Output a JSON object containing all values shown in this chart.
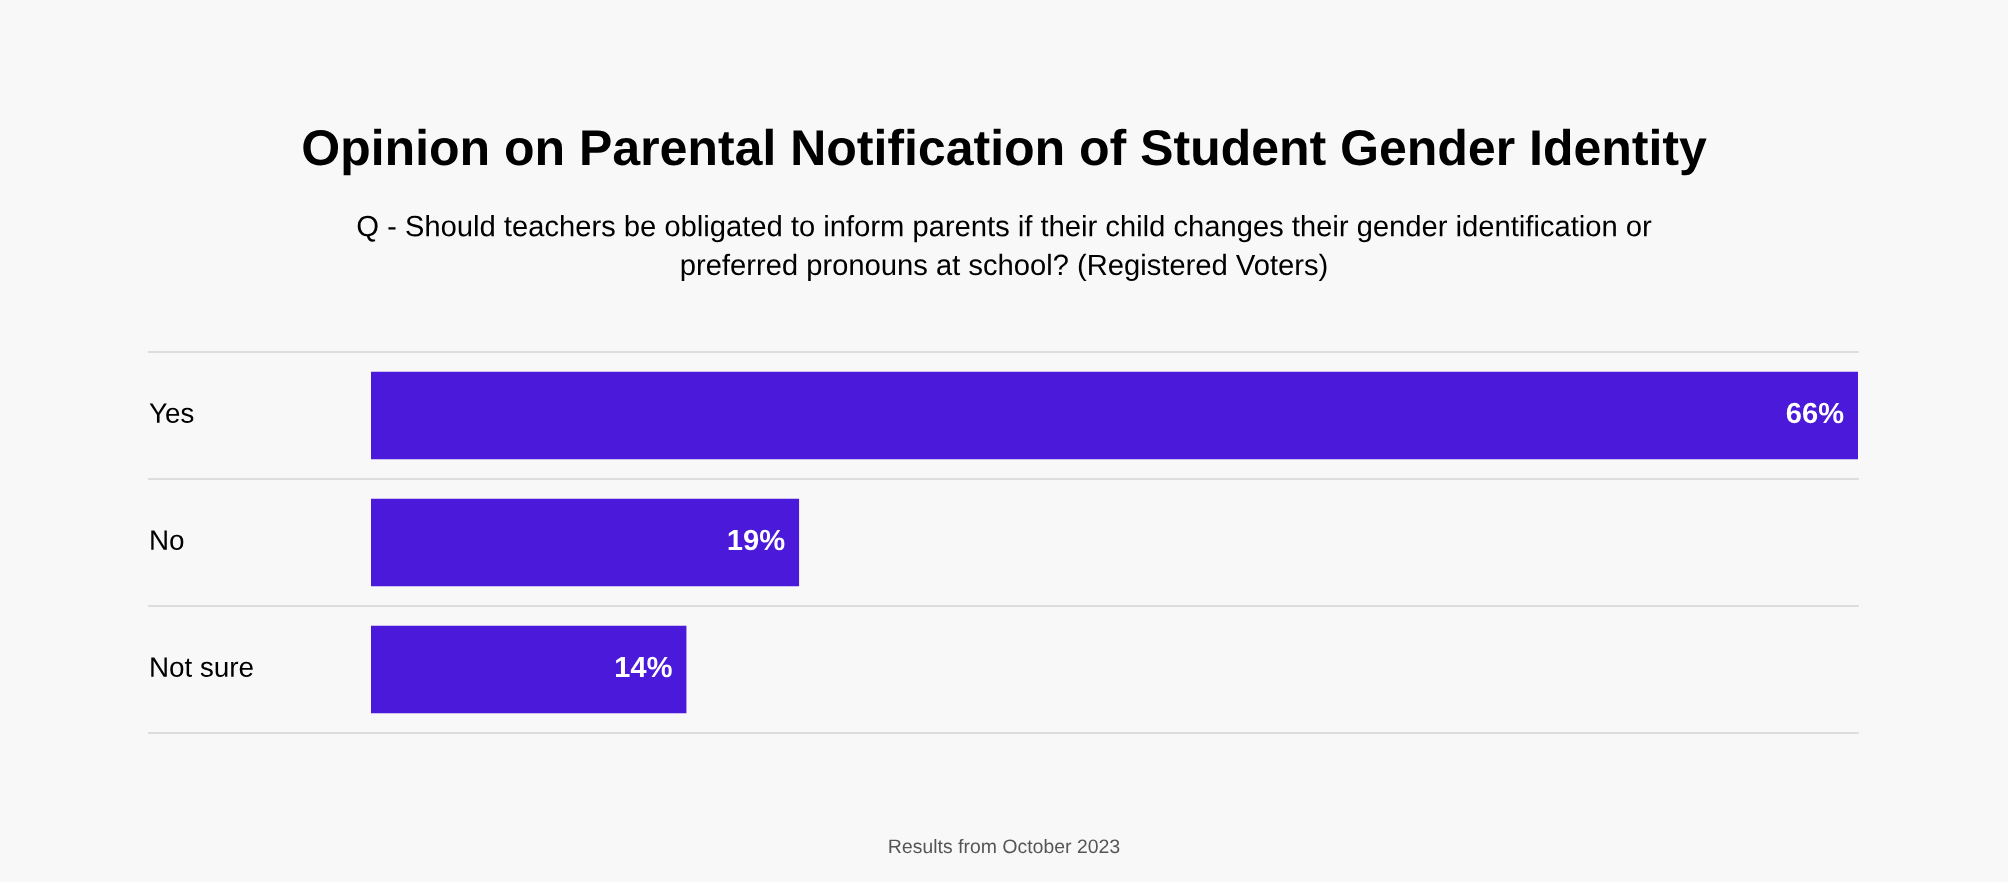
{
  "chart_data": {
    "type": "bar",
    "orientation": "horizontal",
    "title": "Opinion on Parental Notification of Student Gender Identity",
    "subtitle": "Q - Should teachers be obligated to inform parents if their child changes their gender identification or\npreferred pronouns at school? (Registered Voters)",
    "categories": [
      "Yes",
      "No",
      "Not sure"
    ],
    "values": [
      66,
      19,
      14
    ],
    "color": "#4b19d9",
    "value_labels": [
      "66%",
      "19%",
      "14%"
    ],
    "annotations": [
      "Results from October 2023"
    ]
  }
}
